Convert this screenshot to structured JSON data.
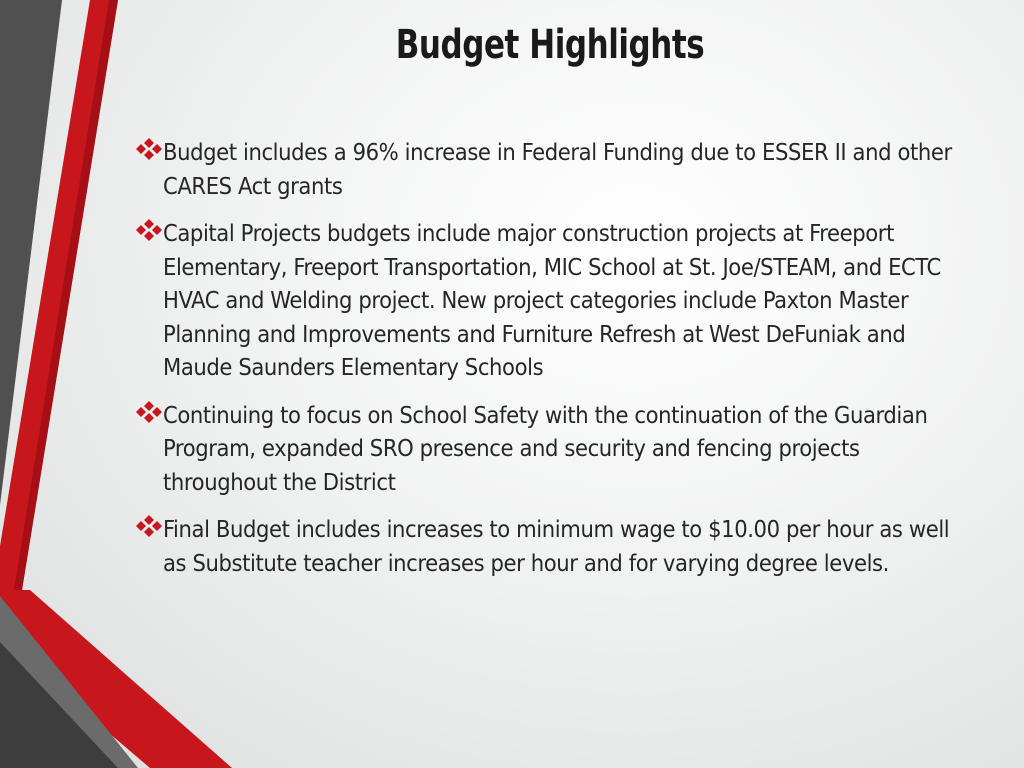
{
  "slide": {
    "title": "Budget Highlights",
    "bullet_icon": "four-diamond-icon",
    "colors": {
      "accent_red": "#c8161d",
      "dark_gray": "#4d4d4d",
      "title_text": "#1a1a1a",
      "body_text": "#262626"
    },
    "bullets": [
      {
        "text": "Budget includes a 96% increase in Federal Funding due to ESSER II and other CARES Act grants"
      },
      {
        "text": "Capital Projects budgets include major construction projects at Freeport Elementary, Freeport Transportation, MIC School at St. Joe/STEAM, and ECTC HVAC and Welding project.  New project categories include Paxton Master Planning and Improvements and Furniture Refresh at West DeFuniak and Maude Saunders Elementary Schools"
      },
      {
        "text": "Continuing to focus on School Safety with the continuation of the Guardian Program, expanded SRO presence and security and fencing projects throughout the District"
      },
      {
        "text": "Final Budget includes increases to minimum wage to $10.00 per hour as well as Substitute teacher increases per hour and for varying degree levels."
      }
    ]
  }
}
